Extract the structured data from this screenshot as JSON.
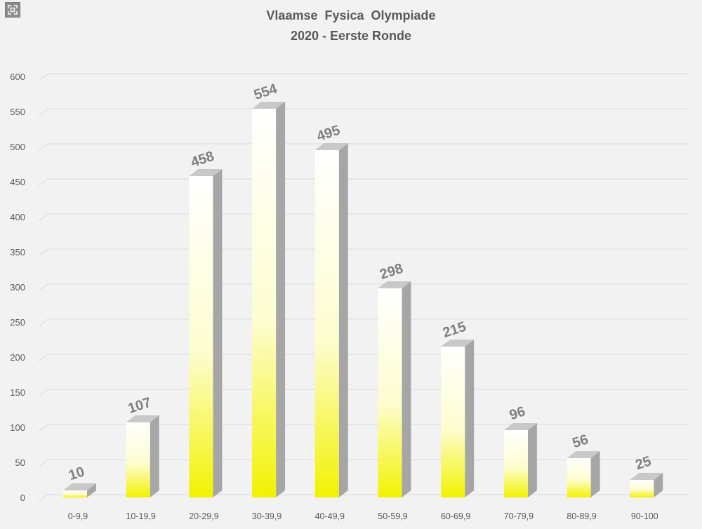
{
  "expand_icon": "expand-icon",
  "chart_data": {
    "type": "bar",
    "title": "Vlaamse  Fysica  Olympiade",
    "subtitle": "2020 - Eerste Ronde",
    "categories": [
      "0-9,9",
      "10-19,9",
      "20-29,9",
      "30-39,9",
      "40-49,9",
      "50-59,9",
      "60-69,9",
      "70-79,9",
      "80-89,9",
      "90-100"
    ],
    "values": [
      10,
      107,
      458,
      554,
      495,
      298,
      215,
      96,
      56,
      25
    ],
    "data_labels": [
      "10",
      "107",
      "458",
      "554",
      "495",
      "298",
      "215",
      "96",
      "56",
      "25"
    ],
    "yticks": [
      0,
      50,
      100,
      150,
      200,
      250,
      300,
      350,
      400,
      450,
      500,
      550,
      600
    ],
    "ylim": [
      0,
      600
    ],
    "grid": true,
    "legend": "none",
    "style": "3d-column",
    "colors": {
      "bar_top": "#ffffff",
      "bar_bottom": "#f2f200",
      "bar_side": "#a6a6a6",
      "grid": "#d9d9d9",
      "text": "#595959",
      "label": "#7f7f7f"
    }
  }
}
